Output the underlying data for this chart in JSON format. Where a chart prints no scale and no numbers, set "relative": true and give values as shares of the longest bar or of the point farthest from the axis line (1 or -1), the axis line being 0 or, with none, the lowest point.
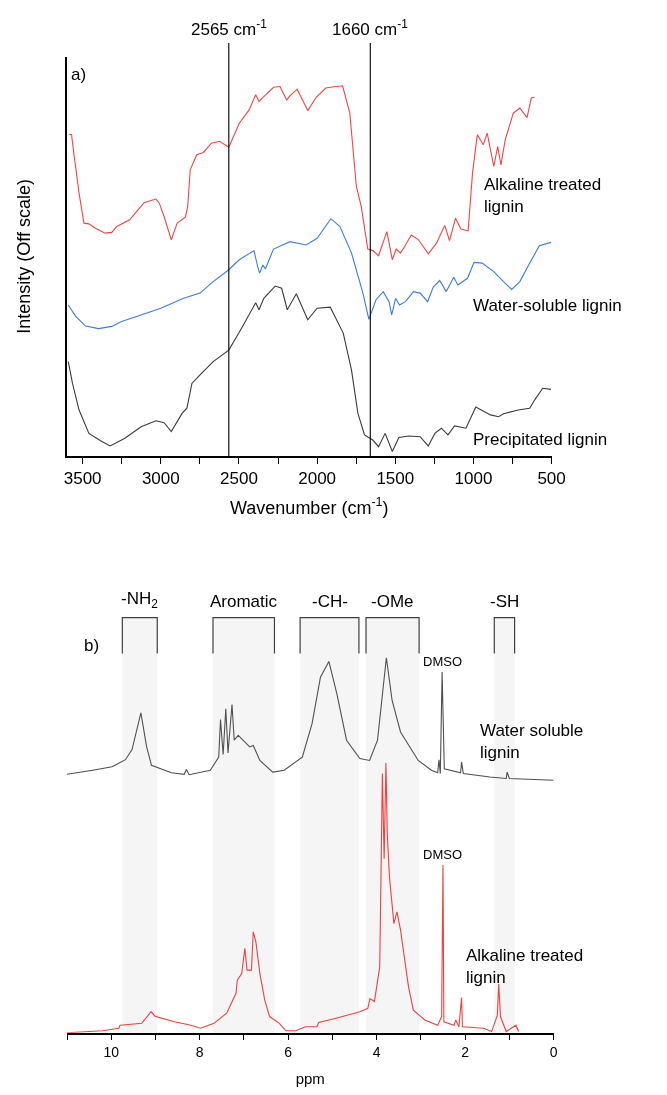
{
  "chart_data": [
    {
      "type": "line",
      "relative": true,
      "xlabel": "Wavenumber (cm$^{-1}$)",
      "ylabel": "Intensity (Off scale)",
      "xlim": [
        3600,
        500
      ],
      "xticks": [
        3500,
        {
          "value": 3250,
          "label": null
        },
        3000,
        {
          "value": 2750,
          "label": null
        },
        2500,
        {
          "value": 2250,
          "label": null
        },
        2000,
        {
          "value": 1750,
          "label": null
        },
        1500,
        {
          "value": 1250,
          "label": null
        },
        1000,
        {
          "value": 750,
          "label": null
        },
        500
      ],
      "legend": false,
      "grid": false,
      "tick_labels": "x",
      "annotations": [
        "a)"
      ],
      "ref_lines": [
        {
          "axis": "x",
          "value": 2565,
          "label": "2565 cm$^{-1}$",
          "color": "#000000"
        },
        {
          "axis": "x",
          "value": 1660,
          "label": "1660 cm$^{-1}$",
          "color": "#000000"
        }
      ],
      "series": [
        {
          "name": "Alkaline treated\nlignin",
          "color": "#f04545",
          "x": [
            3586,
            3571,
            3554,
            3523,
            3492,
            3460,
            3418,
            3356,
            3314,
            3282,
            3199,
            3146,
            3105,
            3031,
            3010,
            2979,
            2933,
            2895,
            2843,
            2828,
            2812,
            2770,
            2728,
            2676,
            2624,
            2565,
            2498,
            2435,
            2393,
            2372,
            2341,
            2279,
            2237,
            2195,
            2174,
            2128,
            2060,
            2006,
            1944,
            1916,
            1837,
            1791,
            1749,
            1718,
            1676,
            1644,
            1607,
            1554,
            1519,
            1494,
            1467,
            1440,
            1398,
            1351,
            1289,
            1236,
            1184,
            1153,
            1115,
            1080,
            1034,
            1006,
            975,
            937,
            912,
            870,
            845,
            824,
            797,
            745,
            703,
            657,
            630,
            609
          ],
          "values": [
            0.869,
            0.868,
            0.809,
            0.71,
            0.629,
            0.627,
            0.615,
            0.602,
            0.604,
            0.62,
            0.638,
            0.665,
            0.685,
            0.694,
            0.683,
            0.647,
            0.584,
            0.629,
            0.645,
            0.674,
            0.773,
            0.814,
            0.82,
            0.845,
            0.85,
            0.834,
            0.899,
            0.935,
            0.976,
            0.958,
            0.971,
            0.996,
            0.998,
            0.962,
            0.973,
            0.991,
            0.933,
            0.969,
            0.994,
            0.996,
            1.0,
            0.926,
            0.728,
            0.674,
            0.559,
            0.555,
            0.541,
            0.606,
            0.53,
            0.559,
            0.548,
            0.566,
            0.597,
            0.584,
            0.546,
            0.575,
            0.623,
            0.582,
            0.642,
            0.613,
            0.608,
            0.764,
            0.868,
            0.841,
            0.872,
            0.782,
            0.836,
            0.786,
            0.854,
            0.926,
            0.94,
            0.914,
            0.967,
            0.969
          ]
        },
        {
          "name": "Water-soluble lignin",
          "color": "#3a7de0",
          "x": [
            3592,
            3544,
            3481,
            3398,
            3314,
            3251,
            3126,
            3000,
            2854,
            2749,
            2665,
            2565,
            2498,
            2404,
            2383,
            2368,
            2347,
            2331,
            2279,
            2174,
            2070,
            2000,
            1912,
            1854,
            1780,
            1707,
            1669,
            1623,
            1577,
            1540,
            1523,
            1498,
            1473,
            1435,
            1383,
            1341,
            1293,
            1257,
            1216,
            1174,
            1126,
            1100,
            1038,
            996,
            944,
            870,
            808,
            755,
            703,
            640,
            578,
            504
          ],
          "values": [
            0.408,
            0.377,
            0.351,
            0.344,
            0.35,
            0.363,
            0.381,
            0.399,
            0.426,
            0.44,
            0.471,
            0.503,
            0.53,
            0.555,
            0.516,
            0.494,
            0.516,
            0.505,
            0.559,
            0.579,
            0.57,
            0.588,
            0.641,
            0.62,
            0.548,
            0.44,
            0.369,
            0.422,
            0.444,
            0.417,
            0.381,
            0.426,
            0.408,
            0.417,
            0.444,
            0.44,
            0.417,
            0.456,
            0.474,
            0.444,
            0.483,
            0.462,
            0.48,
            0.523,
            0.521,
            0.498,
            0.471,
            0.45,
            0.471,
            0.521,
            0.568,
            0.577
          ]
        },
        {
          "name": "Precipitated lignin",
          "color": "#3c3c3c",
          "x": [
            3592,
            3565,
            3523,
            3460,
            3377,
            3324,
            3230,
            3126,
            3031,
            2979,
            2933,
            2864,
            2833,
            2801,
            2749,
            2665,
            2565,
            2477,
            2393,
            2372,
            2341,
            2268,
            2227,
            2191,
            2133,
            2060,
            2000,
            1916,
            1833,
            1780,
            1739,
            1697,
            1644,
            1607,
            1565,
            1519,
            1477,
            1414,
            1341,
            1289,
            1247,
            1205,
            1163,
            1121,
            1048,
            985,
            891,
            839,
            808,
            714,
            640,
            609,
            557,
            504
          ],
          "values": [
            0.255,
            0.196,
            0.124,
            0.061,
            0.039,
            0.027,
            0.048,
            0.079,
            0.095,
            0.09,
            0.066,
            0.115,
            0.129,
            0.196,
            0.219,
            0.255,
            0.286,
            0.35,
            0.414,
            0.395,
            0.426,
            0.459,
            0.453,
            0.395,
            0.438,
            0.368,
            0.399,
            0.402,
            0.332,
            0.232,
            0.115,
            0.057,
            0.043,
            0.025,
            0.061,
            0.012,
            0.05,
            0.054,
            0.052,
            0.027,
            0.061,
            0.075,
            0.057,
            0.081,
            0.075,
            0.132,
            0.111,
            0.106,
            0.114,
            0.124,
            0.129,
            0.151,
            0.183,
            0.18
          ]
        }
      ]
    },
    {
      "type": "line",
      "relative": true,
      "xlabel": "ppm",
      "xlim": [
        11,
        0
      ],
      "xticks": [
        {
          "value": 11,
          "label": null
        },
        10,
        {
          "value": 9,
          "label": null
        },
        8,
        {
          "value": 7,
          "label": null
        },
        6,
        {
          "value": 5,
          "label": null
        },
        4,
        {
          "value": 3,
          "label": null
        },
        2,
        {
          "value": 1,
          "label": null
        },
        0
      ],
      "legend": false,
      "grid": false,
      "tick_labels": "x",
      "annotations": [
        "b)",
        {
          "text": "DMSO",
          "x": 2.5,
          "y": 0.962
        },
        {
          "text": "DMSO",
          "x": 2.5,
          "y": 0.447
        }
      ],
      "bands": [
        {
          "axis": "x",
          "from": 9.75,
          "to": 8.96,
          "label": "-NH$_{2}$"
        },
        {
          "axis": "x",
          "from": 7.7,
          "to": 6.31,
          "label": "Aromatic"
        },
        {
          "axis": "x",
          "from": 5.73,
          "to": 4.4,
          "label": "-CH-"
        },
        {
          "axis": "x",
          "from": 4.24,
          "to": 3.04,
          "label": "-OMe"
        },
        {
          "axis": "x",
          "from": 1.34,
          "to": 0.88,
          "label": "-SH"
        }
      ],
      "series": [
        {
          "name": "Water soluble\nlignin",
          "color": "#505050",
          "x": [
            11,
            10.42,
            9.98,
            9.68,
            9.53,
            9.33,
            9.2,
            9.09,
            8.64,
            8.35,
            8.3,
            8.24,
            7.76,
            7.57,
            7.53,
            7.47,
            7.41,
            7.36,
            7.27,
            7.22,
            7.13,
            6.87,
            6.79,
            6.64,
            6.35,
            6.09,
            5.68,
            5.46,
            5.27,
            5.08,
            4.9,
            4.68,
            4.38,
            4.16,
            3.98,
            3.78,
            3.65,
            3.46,
            3.06,
            2.76,
            2.62,
            2.59,
            2.56,
            2.52,
            2.47,
            2.1,
            2.08,
            2.04,
            1.44,
            1.07,
            1.05,
            1.0,
            0.0
          ],
          "values": [
            0.689,
            0.7,
            0.709,
            0.728,
            0.755,
            0.853,
            0.762,
            0.713,
            0.693,
            0.689,
            0.702,
            0.688,
            0.7,
            0.735,
            0.835,
            0.742,
            0.864,
            0.746,
            0.875,
            0.78,
            0.793,
            0.762,
            0.766,
            0.726,
            0.695,
            0.7,
            0.735,
            0.824,
            0.948,
            0.99,
            0.904,
            0.78,
            0.731,
            0.726,
            0.78,
            1.0,
            0.886,
            0.802,
            0.726,
            0.7,
            0.693,
            0.728,
            0.691,
            0.962,
            0.704,
            0.693,
            0.722,
            0.691,
            0.682,
            0.678,
            0.695,
            0.678,
            0.673
          ]
        },
        {
          "name": "Alkaline treated\nlignin",
          "color": "#f04040",
          "x": [
            11,
            10.2,
            9.83,
            9.8,
            9.31,
            9.1,
            9.01,
            8.57,
            8.2,
            7.98,
            7.68,
            7.39,
            7.18,
            7.15,
            7.05,
            6.98,
            6.93,
            6.83,
            6.79,
            6.73,
            6.64,
            6.53,
            6.42,
            6.2,
            6.05,
            5.83,
            5.61,
            5.35,
            5.31,
            4.94,
            4.38,
            4.2,
            4.15,
            4.05,
            3.93,
            3.87,
            3.83,
            3.79,
            3.76,
            3.71,
            3.61,
            3.54,
            3.46,
            3.28,
            3.17,
            2.91,
            2.62,
            2.53,
            2.5,
            2.48,
            2.25,
            2.21,
            2.14,
            2.08,
            2.06,
            1.58,
            1.4,
            1.27,
            1.24,
            1.2,
            1.07,
            0.85,
            0.79
          ],
          "values": [
            0,
            0.005,
            0.012,
            0.02,
            0.025,
            0.056,
            0.044,
            0.029,
            0.02,
            0.012,
            0.025,
            0.052,
            0.105,
            0.14,
            0.158,
            0.225,
            0.167,
            0.167,
            0.269,
            0.242,
            0.158,
            0.087,
            0.043,
            0.025,
            0.005,
            0.005,
            0.016,
            0.016,
            0.027,
            0.038,
            0.056,
            0.065,
            0.091,
            0.083,
            0.176,
            0.691,
            0.464,
            0.719,
            0.531,
            0.416,
            0.291,
            0.322,
            0.274,
            0.123,
            0.06,
            0.034,
            0.02,
            0.043,
            0.447,
            0.029,
            0.02,
            0.034,
            0.016,
            0.094,
            0.016,
            0.012,
            0.003,
            0.047,
            0.13,
            0.043,
            0.003,
            0.02,
            0.003
          ]
        }
      ]
    }
  ]
}
